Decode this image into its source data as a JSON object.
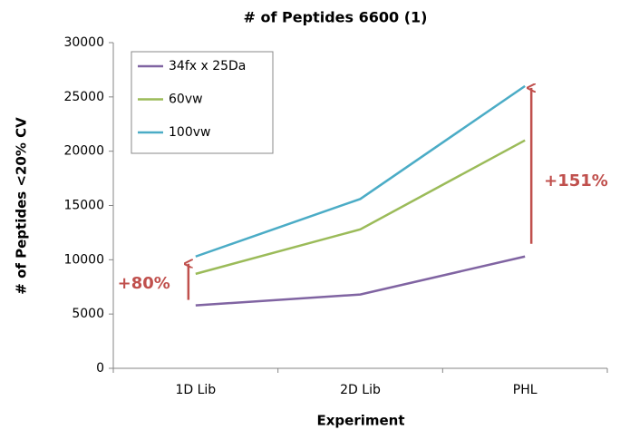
{
  "chart_data": {
    "type": "line",
    "title": "# of Peptides 6600 (1)",
    "x_label": "Experiment",
    "y_label": "# of Peptides <20% CV",
    "categories": [
      "1D Lib",
      "2D Lib",
      "PHL"
    ],
    "series": [
      {
        "name": "34fx x 25Da",
        "color": "#8064a2",
        "values": [
          5800,
          6800,
          10300
        ]
      },
      {
        "name": "60vw",
        "color": "#9bbb59",
        "values": [
          8700,
          12800,
          21000
        ]
      },
      {
        "name": "100vw",
        "color": "#4bacc6",
        "values": [
          10300,
          15600,
          26000
        ]
      }
    ],
    "ylim": [
      0,
      30000
    ],
    "yticks": [
      0,
      5000,
      10000,
      15000,
      20000,
      25000,
      30000
    ],
    "grid": false,
    "legend": "upper left",
    "annotations": [
      {
        "text": "+80%",
        "color": "#c0504d"
      },
      {
        "text": "+151%",
        "color": "#c0504d"
      }
    ]
  }
}
